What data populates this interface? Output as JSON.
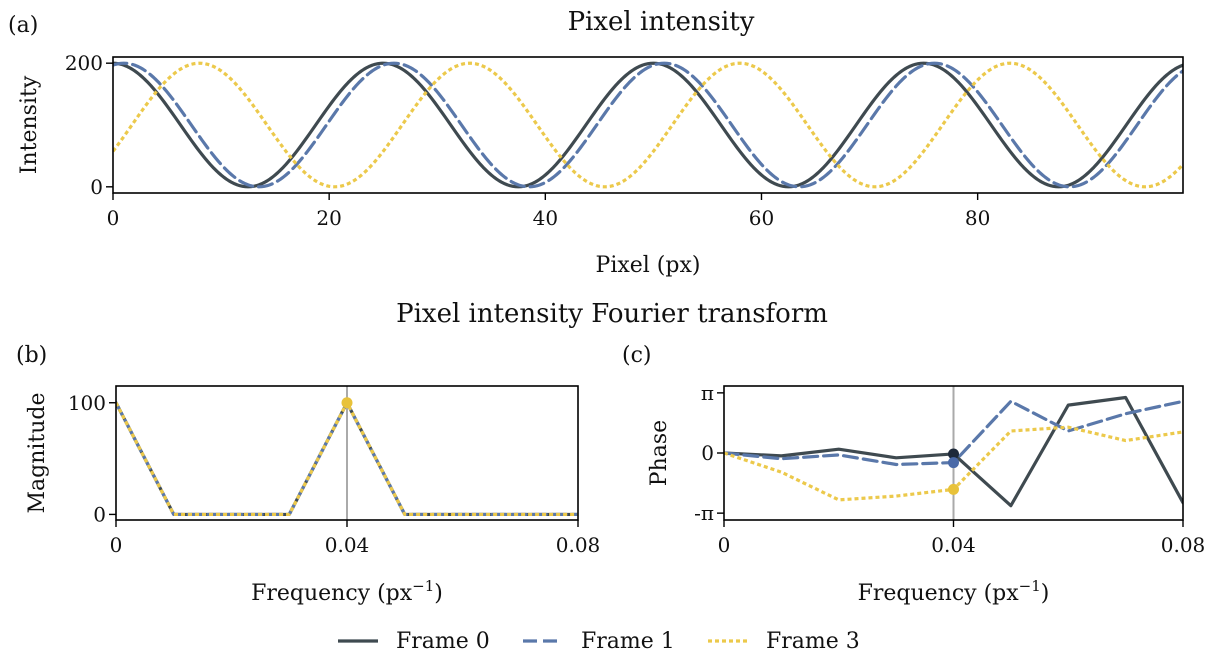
{
  "titles": {
    "top": "Pixel intensity",
    "bottom": "Pixel intensity Fourier transform"
  },
  "panel_labels": {
    "a": "(a)",
    "b": "(b)",
    "c": "(c)"
  },
  "legend": [
    {
      "key": "frame0",
      "label": "Frame 0"
    },
    {
      "key": "frame1",
      "label": "Frame 1"
    },
    {
      "key": "frame3",
      "label": "Frame 3"
    }
  ],
  "series_style": {
    "frame0": {
      "color": "#3f4a50",
      "dash": "solid"
    },
    "frame1": {
      "color": "#5a78aa",
      "dash": "dashed"
    },
    "frame3": {
      "color": "#ecc94b",
      "dash": "dotted"
    }
  },
  "marker_colors": {
    "frame0": "#1e2a3a",
    "frame1": "#4a6aa8",
    "frame3": "#e8c23a"
  },
  "chart_data": [
    {
      "type": "line",
      "panel": "a",
      "xlabel": "Pixel (px)",
      "ylabel": "Intensity",
      "xlim": [
        0,
        99
      ],
      "ylim": [
        -10,
        210
      ],
      "xticks": [
        0,
        20,
        40,
        60,
        80
      ],
      "xtick_labels": [
        "0",
        "20",
        "40",
        "60",
        "80"
      ],
      "yticks": [
        0,
        200
      ],
      "ytick_labels": [
        "0",
        "200"
      ],
      "grid": false,
      "signal": {
        "form": "100 + 100*cos(2*pi*(x - peak)/25)",
        "period_px": 25,
        "x_range": [
          0,
          99
        ]
      },
      "series": [
        {
          "key": "frame0",
          "name": "Frame 0",
          "peak_px": 0
        },
        {
          "key": "frame1",
          "name": "Frame 1",
          "peak_px": 1
        },
        {
          "key": "frame3",
          "name": "Frame 3",
          "peak_px": 8
        }
      ]
    },
    {
      "type": "line",
      "panel": "b",
      "xlabel": "Frequency (px",
      "xlabel_sup": "−1",
      "xlabel_suffix": ")",
      "ylabel": "Magnitude",
      "xlim": [
        0,
        0.08
      ],
      "ylim": [
        -5,
        115
      ],
      "xticks": [
        0,
        0.04,
        0.08
      ],
      "xtick_labels": [
        "0",
        "0.04",
        "0.08"
      ],
      "yticks": [
        0,
        100
      ],
      "ytick_labels": [
        "0",
        "100"
      ],
      "vline_x": 0.04,
      "x": [
        0,
        0.01,
        0.02,
        0.03,
        0.04,
        0.05,
        0.06,
        0.07,
        0.08
      ],
      "series": [
        {
          "key": "frame0",
          "name": "Frame 0",
          "values": [
            100,
            0,
            0,
            0,
            100,
            0,
            0,
            0,
            0
          ]
        },
        {
          "key": "frame1",
          "name": "Frame 1",
          "values": [
            100,
            0,
            0,
            0,
            100,
            0,
            0,
            0,
            0
          ]
        },
        {
          "key": "frame3",
          "name": "Frame 3",
          "values": [
            100,
            0,
            0,
            0,
            100,
            0,
            0,
            0,
            0
          ]
        }
      ],
      "markers": [
        {
          "key": "frame3",
          "x": 0.04,
          "y": 100
        }
      ]
    },
    {
      "type": "line",
      "panel": "c",
      "xlabel": "Frequency (px",
      "xlabel_sup": "−1",
      "xlabel_suffix": ")",
      "ylabel": "Phase",
      "xlim": [
        0,
        0.08
      ],
      "ylim": [
        -3.5,
        3.5
      ],
      "xticks": [
        0,
        0.04,
        0.08
      ],
      "xtick_labels": [
        "0",
        "0.04",
        "0.08"
      ],
      "yticks": [
        3.1416,
        0,
        -3.1416
      ],
      "ytick_labels": [
        "π",
        "0",
        "-π"
      ],
      "vline_x": 0.04,
      "x": [
        0,
        0.01,
        0.02,
        0.03,
        0.04,
        0.05,
        0.06,
        0.07,
        0.08
      ],
      "series": [
        {
          "key": "frame0",
          "name": "Frame 0",
          "values": [
            0,
            -0.15,
            0.2,
            -0.25,
            -0.05,
            -2.75,
            2.5,
            2.9,
            -2.6
          ]
        },
        {
          "key": "frame1",
          "name": "Frame 1",
          "values": [
            0,
            -0.3,
            -0.1,
            -0.6,
            -0.5,
            2.7,
            1.15,
            2.05,
            2.7
          ]
        },
        {
          "key": "frame3",
          "name": "Frame 3",
          "values": [
            0,
            -1.0,
            -2.45,
            -2.25,
            -1.9,
            1.15,
            1.35,
            0.65,
            1.1
          ]
        }
      ],
      "markers": [
        {
          "key": "frame0",
          "x": 0.04,
          "y": -0.05
        },
        {
          "key": "frame1",
          "x": 0.04,
          "y": -0.5
        },
        {
          "key": "frame3",
          "x": 0.04,
          "y": -1.9
        }
      ]
    }
  ]
}
